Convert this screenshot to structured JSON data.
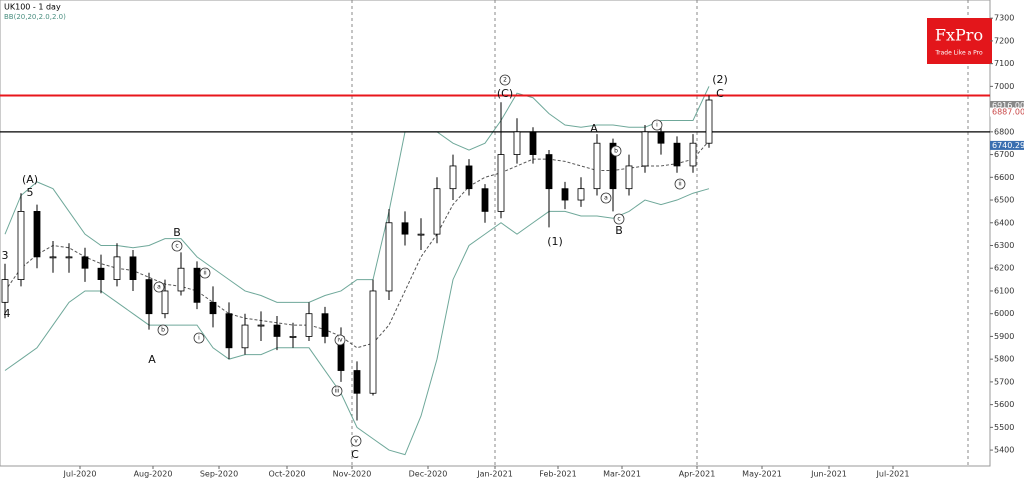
{
  "chart_data": {
    "type": "candlestick",
    "title": "UK100 - 1 day",
    "subtitle": "BB(20,20,2.0,2.0)",
    "brand": {
      "name": "FxPro",
      "tagline": "Trade Like a Pro"
    },
    "x_labels": [
      "Jul-2020",
      "Aug-2020",
      "Sep-2020",
      "Oct-2020",
      "Nov-2020",
      "Dec-2020",
      "Jan-2021",
      "Feb-2021",
      "Mar-2021",
      "Apr-2021",
      "May-2021",
      "Jun-2021",
      "Jul-2021"
    ],
    "open": [
      6050,
      6150,
      6450,
      6250,
      6250,
      6250,
      6200,
      6150,
      6250,
      6150,
      6000,
      6100,
      6200,
      6050,
      6000,
      5850,
      5950,
      5950,
      5900,
      5900,
      6000,
      5900,
      5750,
      5650,
      6100,
      6400,
      6350,
      6350,
      6550,
      6650,
      6550,
      6450,
      6700,
      6800,
      6700,
      6550,
      6500,
      6550,
      6750,
      6550,
      6650,
      6800,
      6750,
      6650,
      6750
    ],
    "high": [
      6220,
      6530,
      6480,
      6320,
      6310,
      6290,
      6260,
      6310,
      6280,
      6180,
      6150,
      6270,
      6230,
      6120,
      6050,
      6000,
      6010,
      5990,
      5960,
      6050,
      6030,
      5940,
      5790,
      6150,
      6460,
      6450,
      6420,
      6600,
      6700,
      6680,
      6570,
      6930,
      6860,
      6820,
      6720,
      6580,
      6600,
      6790,
      6770,
      6700,
      6830,
      6830,
      6780,
      6790,
      6960
    ],
    "low": [
      5980,
      6120,
      6200,
      6180,
      6180,
      6140,
      6090,
      6120,
      6100,
      5930,
      5980,
      6080,
      6020,
      5940,
      5800,
      5820,
      5880,
      5840,
      5850,
      5880,
      5870,
      5700,
      5530,
      5640,
      6060,
      6300,
      6280,
      6310,
      6500,
      6520,
      6400,
      6420,
      6660,
      6660,
      6380,
      6460,
      6470,
      6520,
      6450,
      6520,
      6620,
      6700,
      6620,
      6620,
      6730
    ],
    "close": [
      6150,
      6450,
      6250,
      6250,
      6250,
      6200,
      6150,
      6250,
      6150,
      6000,
      6100,
      6200,
      6050,
      6000,
      5850,
      5950,
      5950,
      5900,
      5900,
      6000,
      5900,
      5750,
      5650,
      6100,
      6400,
      6350,
      6350,
      6550,
      6650,
      6550,
      6450,
      6700,
      6800,
      6700,
      6550,
      6500,
      6550,
      6750,
      6550,
      6650,
      6800,
      6750,
      6650,
      6750,
      6940
    ],
    "series": [
      {
        "name": "BB upper",
        "color": "#6fa89a",
        "values": [
          6350,
          6520,
          6580,
          6550,
          6450,
          6350,
          6300,
          6300,
          6290,
          6300,
          6330,
          6330,
          6250,
          6200,
          6150,
          6100,
          6080,
          6050,
          6050,
          6050,
          6080,
          6100,
          6150,
          6150,
          6450,
          6800,
          6800,
          6800,
          6750,
          6720,
          6750,
          6850,
          6970,
          6950,
          6880,
          6830,
          6820,
          6830,
          6830,
          6820,
          6820,
          6850,
          6850,
          6850,
          7000
        ]
      },
      {
        "name": "BB middle",
        "color": "#555555",
        "values": [
          6100,
          6200,
          6260,
          6300,
          6290,
          6250,
          6220,
          6200,
          6190,
          6160,
          6130,
          6120,
          6100,
          6050,
          6000,
          5980,
          5970,
          5960,
          5950,
          5950,
          5930,
          5900,
          5850,
          5870,
          5950,
          6100,
          6250,
          6350,
          6480,
          6560,
          6600,
          6620,
          6650,
          6680,
          6680,
          6670,
          6650,
          6630,
          6630,
          6640,
          6650,
          6650,
          6660,
          6680,
          6760
        ]
      },
      {
        "name": "BB lower",
        "color": "#6fa89a",
        "values": [
          5750,
          5800,
          5850,
          5950,
          6050,
          6100,
          6100,
          6050,
          6000,
          5950,
          5950,
          5950,
          5950,
          5850,
          5800,
          5820,
          5820,
          5850,
          5850,
          5850,
          5750,
          5650,
          5500,
          5450,
          5400,
          5380,
          5550,
          5800,
          6150,
          6300,
          6350,
          6400,
          6350,
          6400,
          6450,
          6450,
          6430,
          6430,
          6420,
          6450,
          6500,
          6480,
          6500,
          6530,
          6550
        ]
      }
    ],
    "levels": [
      {
        "value": 6960,
        "color": "#e8161b"
      },
      {
        "value": 6800,
        "color": "#000000"
      }
    ],
    "price_labels": [
      {
        "value": 6916,
        "label": "6916.00",
        "color": "#888888"
      },
      {
        "value": 6887,
        "label": "6887.00",
        "color": "#c94a4a"
      },
      {
        "value": 6740.29,
        "label": "6740.29",
        "color": "#3a6fb0"
      }
    ],
    "ylim": [
      5330,
      7380
    ],
    "yticks": [
      5400,
      5500,
      5600,
      5700,
      5800,
      5900,
      6000,
      6100,
      6200,
      6300,
      6400,
      6500,
      6600,
      6700,
      6800,
      6900,
      7000,
      7100,
      7200,
      7300
    ],
    "annotations": [
      {
        "text": "(A)",
        "circled": false
      },
      {
        "text": "5",
        "circled": false
      },
      {
        "text": "3",
        "circled": false
      },
      {
        "text": "4",
        "circled": false
      },
      {
        "text": "A",
        "circled": false
      },
      {
        "text": "B",
        "circled": false
      },
      {
        "text": "c",
        "circled": true
      },
      {
        "text": "a",
        "circled": true
      },
      {
        "text": "b",
        "circled": true
      },
      {
        "text": "ii",
        "circled": true
      },
      {
        "text": "i",
        "circled": true
      },
      {
        "text": "iv",
        "circled": true
      },
      {
        "text": "iii",
        "circled": true
      },
      {
        "text": "v",
        "circled": true
      },
      {
        "text": "C",
        "circled": false
      },
      {
        "text": "2",
        "circled": true
      },
      {
        "text": "(C)",
        "circled": false
      },
      {
        "text": "(1)",
        "circled": false
      },
      {
        "text": "A",
        "circled": false
      },
      {
        "text": "b",
        "circled": true
      },
      {
        "text": "a",
        "circled": true
      },
      {
        "text": "c",
        "circled": true
      },
      {
        "text": "B",
        "circled": false
      },
      {
        "text": "i",
        "circled": true
      },
      {
        "text": "ii",
        "circled": true
      },
      {
        "text": "(2)",
        "circled": false
      },
      {
        "text": "C",
        "circled": false
      }
    ]
  }
}
